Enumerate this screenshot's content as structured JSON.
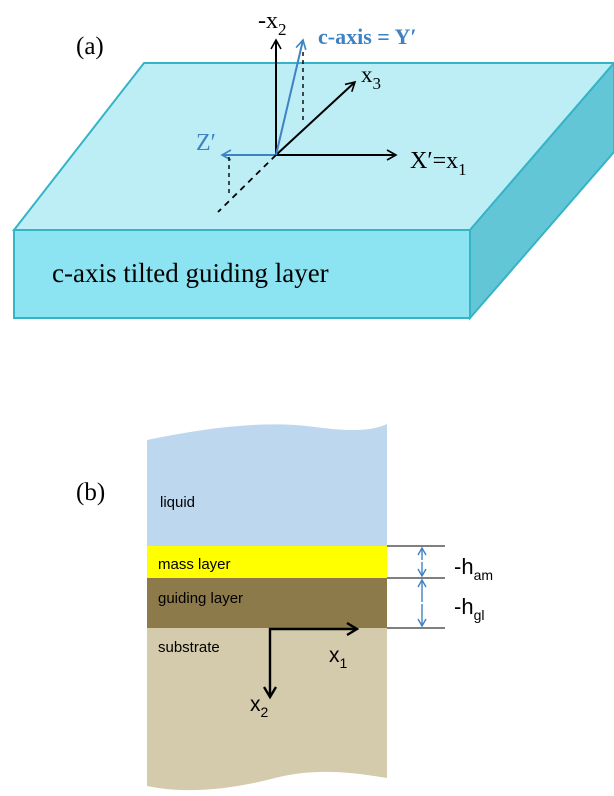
{
  "panel_a": {
    "label": "(a)",
    "layer_label": "c-axis tilted guiding layer",
    "axis_neg_x2": "-x",
    "axis_neg_x2_sub": "2",
    "axis_caxis": "c-axis = Y′",
    "axis_x3": "x",
    "axis_x3_sub": "3",
    "axis_zprime": "Z′",
    "axis_xprime": "X′=x",
    "axis_xprime_sub": "1",
    "colors": {
      "block_top": "#bdeef6",
      "block_front": "#8ce4f2",
      "block_side": "#63c6d6",
      "block_edge": "#35b3c7",
      "caxis": "#3e82c4"
    }
  },
  "panel_b": {
    "label": "(b)",
    "layers": {
      "liquid": "liquid",
      "mass": "mass layer",
      "guiding": "guiding layer",
      "substrate": "substrate"
    },
    "dim_ham": "-h",
    "dim_ham_sub": "am",
    "dim_hgl": "-h",
    "dim_hgl_sub": "gl",
    "axis_x1": "x",
    "axis_x1_sub": "1",
    "axis_x2": "x",
    "axis_x2_sub": "2",
    "colors": {
      "liquid": "#bdd7ee",
      "mass": "#ffff00",
      "guiding": "#8c7a4b",
      "substrate": "#d4cbac",
      "dim_arrow": "#3e82c4"
    }
  }
}
